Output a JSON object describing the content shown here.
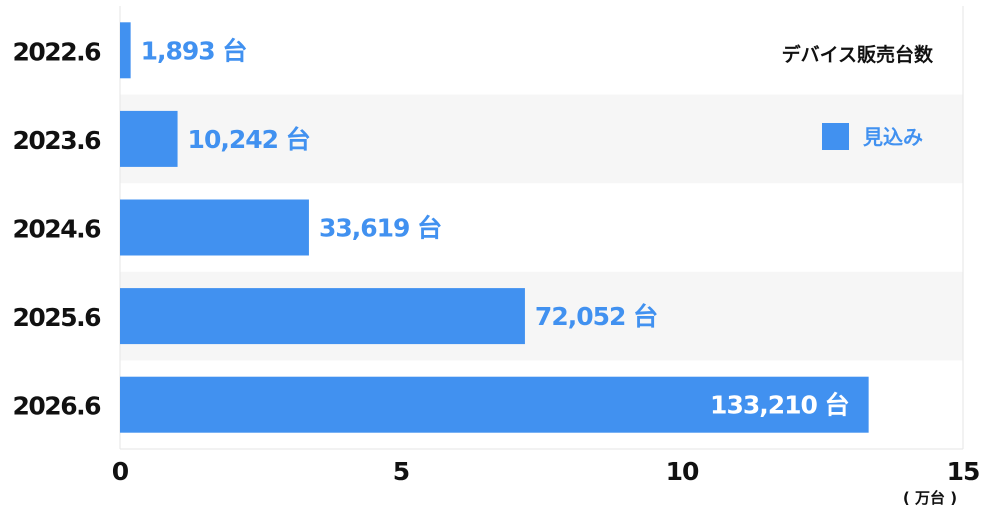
{
  "chart_data": {
    "type": "bar",
    "orientation": "horizontal",
    "title": "デバイス販売台数",
    "unit": "( 万台 )",
    "categories": [
      "2022.6",
      "2023.6",
      "2024.6",
      "2025.6",
      "2026.6"
    ],
    "values": [
      1893,
      10242,
      33619,
      72052,
      133210
    ],
    "value_labels": [
      "1,893 台",
      "10,242 台",
      "33,619 台",
      "72,052 台",
      "133,210 台"
    ],
    "xlim": [
      0,
      150000
    ],
    "xticks": [
      0,
      5,
      10,
      15
    ],
    "x_tick_scale": 10000,
    "legend": {
      "label": "見込み",
      "position": "top-right"
    },
    "grid": false,
    "colors": {
      "bar": "#4191f0",
      "label": "#4191f0",
      "label_inside": "#ffffff",
      "band": "#f6f6f6",
      "axis": "#e6e6e6",
      "text": "#111111"
    }
  }
}
